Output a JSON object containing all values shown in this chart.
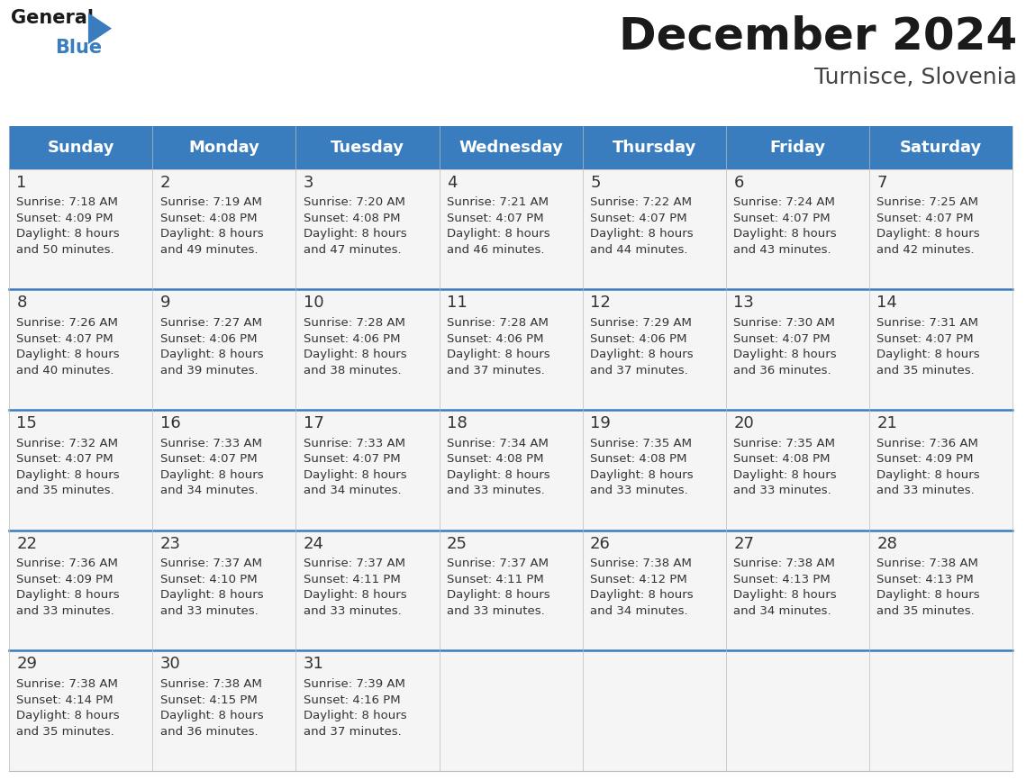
{
  "title": "December 2024",
  "subtitle": "Turnisce, Slovenia",
  "header_color": "#3a7dbf",
  "header_text_color": "#ffffff",
  "cell_bg_color": "#f5f5f5",
  "day_names": [
    "Sunday",
    "Monday",
    "Tuesday",
    "Wednesday",
    "Thursday",
    "Friday",
    "Saturday"
  ],
  "title_fontsize": 36,
  "subtitle_fontsize": 18,
  "header_fontsize": 13,
  "day_num_fontsize": 13,
  "cell_fontsize": 9.5,
  "weeks": [
    [
      {
        "day": 1,
        "sunrise": "7:18 AM",
        "sunset": "4:09 PM",
        "daylight": "8 hours and 50 minutes"
      },
      {
        "day": 2,
        "sunrise": "7:19 AM",
        "sunset": "4:08 PM",
        "daylight": "8 hours and 49 minutes"
      },
      {
        "day": 3,
        "sunrise": "7:20 AM",
        "sunset": "4:08 PM",
        "daylight": "8 hours and 47 minutes"
      },
      {
        "day": 4,
        "sunrise": "7:21 AM",
        "sunset": "4:07 PM",
        "daylight": "8 hours and 46 minutes"
      },
      {
        "day": 5,
        "sunrise": "7:22 AM",
        "sunset": "4:07 PM",
        "daylight": "8 hours and 44 minutes"
      },
      {
        "day": 6,
        "sunrise": "7:24 AM",
        "sunset": "4:07 PM",
        "daylight": "8 hours and 43 minutes"
      },
      {
        "day": 7,
        "sunrise": "7:25 AM",
        "sunset": "4:07 PM",
        "daylight": "8 hours and 42 minutes"
      }
    ],
    [
      {
        "day": 8,
        "sunrise": "7:26 AM",
        "sunset": "4:07 PM",
        "daylight": "8 hours and 40 minutes"
      },
      {
        "day": 9,
        "sunrise": "7:27 AM",
        "sunset": "4:06 PM",
        "daylight": "8 hours and 39 minutes"
      },
      {
        "day": 10,
        "sunrise": "7:28 AM",
        "sunset": "4:06 PM",
        "daylight": "8 hours and 38 minutes"
      },
      {
        "day": 11,
        "sunrise": "7:28 AM",
        "sunset": "4:06 PM",
        "daylight": "8 hours and 37 minutes"
      },
      {
        "day": 12,
        "sunrise": "7:29 AM",
        "sunset": "4:06 PM",
        "daylight": "8 hours and 37 minutes"
      },
      {
        "day": 13,
        "sunrise": "7:30 AM",
        "sunset": "4:07 PM",
        "daylight": "8 hours and 36 minutes"
      },
      {
        "day": 14,
        "sunrise": "7:31 AM",
        "sunset": "4:07 PM",
        "daylight": "8 hours and 35 minutes"
      }
    ],
    [
      {
        "day": 15,
        "sunrise": "7:32 AM",
        "sunset": "4:07 PM",
        "daylight": "8 hours and 35 minutes"
      },
      {
        "day": 16,
        "sunrise": "7:33 AM",
        "sunset": "4:07 PM",
        "daylight": "8 hours and 34 minutes"
      },
      {
        "day": 17,
        "sunrise": "7:33 AM",
        "sunset": "4:07 PM",
        "daylight": "8 hours and 34 minutes"
      },
      {
        "day": 18,
        "sunrise": "7:34 AM",
        "sunset": "4:08 PM",
        "daylight": "8 hours and 33 minutes"
      },
      {
        "day": 19,
        "sunrise": "7:35 AM",
        "sunset": "4:08 PM",
        "daylight": "8 hours and 33 minutes"
      },
      {
        "day": 20,
        "sunrise": "7:35 AM",
        "sunset": "4:08 PM",
        "daylight": "8 hours and 33 minutes"
      },
      {
        "day": 21,
        "sunrise": "7:36 AM",
        "sunset": "4:09 PM",
        "daylight": "8 hours and 33 minutes"
      }
    ],
    [
      {
        "day": 22,
        "sunrise": "7:36 AM",
        "sunset": "4:09 PM",
        "daylight": "8 hours and 33 minutes"
      },
      {
        "day": 23,
        "sunrise": "7:37 AM",
        "sunset": "4:10 PM",
        "daylight": "8 hours and 33 minutes"
      },
      {
        "day": 24,
        "sunrise": "7:37 AM",
        "sunset": "4:11 PM",
        "daylight": "8 hours and 33 minutes"
      },
      {
        "day": 25,
        "sunrise": "7:37 AM",
        "sunset": "4:11 PM",
        "daylight": "8 hours and 33 minutes"
      },
      {
        "day": 26,
        "sunrise": "7:38 AM",
        "sunset": "4:12 PM",
        "daylight": "8 hours and 34 minutes"
      },
      {
        "day": 27,
        "sunrise": "7:38 AM",
        "sunset": "4:13 PM",
        "daylight": "8 hours and 34 minutes"
      },
      {
        "day": 28,
        "sunrise": "7:38 AM",
        "sunset": "4:13 PM",
        "daylight": "8 hours and 35 minutes"
      }
    ],
    [
      {
        "day": 29,
        "sunrise": "7:38 AM",
        "sunset": "4:14 PM",
        "daylight": "8 hours and 35 minutes"
      },
      {
        "day": 30,
        "sunrise": "7:38 AM",
        "sunset": "4:15 PM",
        "daylight": "8 hours and 36 minutes"
      },
      {
        "day": 31,
        "sunrise": "7:39 AM",
        "sunset": "4:16 PM",
        "daylight": "8 hours and 37 minutes"
      },
      null,
      null,
      null,
      null
    ]
  ]
}
